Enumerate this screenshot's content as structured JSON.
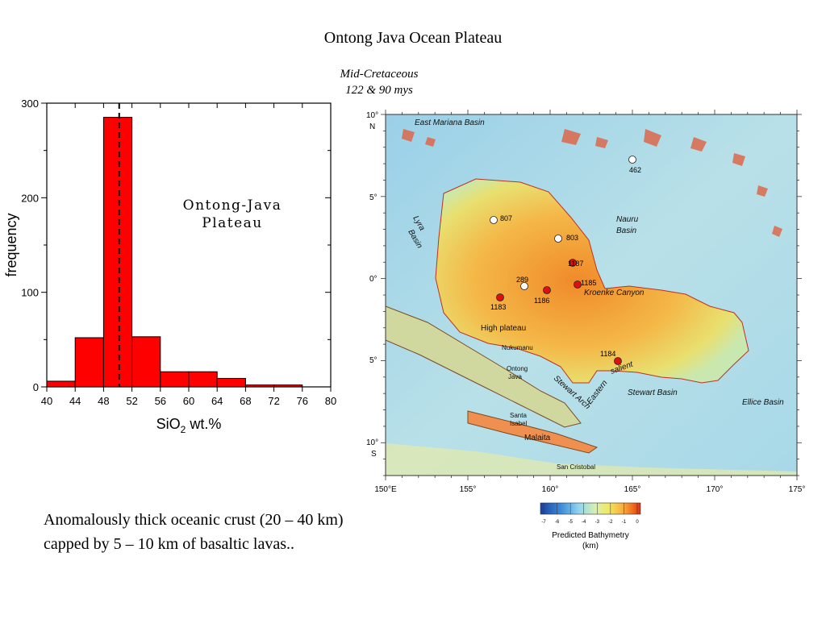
{
  "slide": {
    "title": "Ontong Java Ocean Plateau",
    "subtitle_line1": "Mid-Cretaceous",
    "subtitle_line2": "122 & 90 mys",
    "caption": "Anomalously thick oceanic crust (20 – 40 km) capped by 5 – 10 km of basaltic lavas.."
  },
  "chart_data": {
    "type": "bar",
    "title_line1": "Ontong-Java",
    "title_line2": "Plateau",
    "xlabel_main": "SiO",
    "xlabel_sub": "2",
    "xlabel_rest": " wt.%",
    "ylabel": "frequency",
    "xlim": [
      40,
      80
    ],
    "ylim": [
      0,
      300
    ],
    "xticks": [
      40,
      44,
      48,
      52,
      56,
      60,
      64,
      68,
      72,
      76,
      80
    ],
    "yticks": [
      0,
      100,
      200,
      300
    ],
    "bins": [
      {
        "x0": 40,
        "x1": 44,
        "value": 6
      },
      {
        "x0": 44,
        "x1": 48,
        "value": 52
      },
      {
        "x0": 48,
        "x1": 52,
        "value": 285
      },
      {
        "x0": 52,
        "x1": 56,
        "value": 53
      },
      {
        "x0": 56,
        "x1": 60,
        "value": 16
      },
      {
        "x0": 60,
        "x1": 64,
        "value": 16
      },
      {
        "x0": 64,
        "x1": 68,
        "value": 9
      },
      {
        "x0": 68,
        "x1": 72,
        "value": 2
      },
      {
        "x0": 72,
        "x1": 76,
        "value": 2
      }
    ],
    "dashed_line_x": 50.2,
    "bar_color": "#ff0000"
  },
  "map": {
    "x_tick_labels": [
      "150°E",
      "155°",
      "160°",
      "165°",
      "170°",
      "175°"
    ],
    "y_tick_labels": [
      "10°",
      "N",
      "5°",
      "0°",
      "5°",
      "10°",
      "S"
    ],
    "place_labels": {
      "east_mariana": "East Mariana Basin",
      "lyra": "Lyra",
      "basin_lyra": "Basin",
      "nauru": "Nauru",
      "basin_nauru": "Basin",
      "kroenke": "Kroenke Canyon",
      "high_plateau": "High plateau",
      "nukumanu": "Nukumanu",
      "ontong": "Ontong",
      "java": "Java",
      "stewart_arch": "Stewart Arch",
      "eastern": "Eastern",
      "salient": "salient",
      "stewart_basin": "Stewart Basin",
      "ellice": "Ellice Basin",
      "santa": "Santa",
      "isabel": "Isabel",
      "malaita": "Malaita",
      "san_cristobal": "San Cristobal"
    },
    "sites": [
      {
        "label": "462",
        "color": "#ffffff"
      },
      {
        "label": "807",
        "color": "#ffffff"
      },
      {
        "label": "803",
        "color": "#ffffff"
      },
      {
        "label": "1187",
        "color": "#e01010"
      },
      {
        "label": "289",
        "color": "#ffffff"
      },
      {
        "label": "1185",
        "color": "#e01010"
      },
      {
        "label": "1186",
        "color": "#e01010"
      },
      {
        "label": "1183",
        "color": "#e01010"
      },
      {
        "label": "1184",
        "color": "#e01010"
      }
    ],
    "legend": {
      "ticks": [
        "-7",
        "-6",
        "-5",
        "-4",
        "-3",
        "-2",
        "-1",
        "0"
      ],
      "title": "Predicted Bathymetry",
      "unit": "(km)",
      "colors": [
        "#1a3fa0",
        "#3a8ad8",
        "#8ed4f0",
        "#d8f0b0",
        "#f0e860",
        "#f8b040",
        "#f07020",
        "#e03010"
      ]
    }
  }
}
